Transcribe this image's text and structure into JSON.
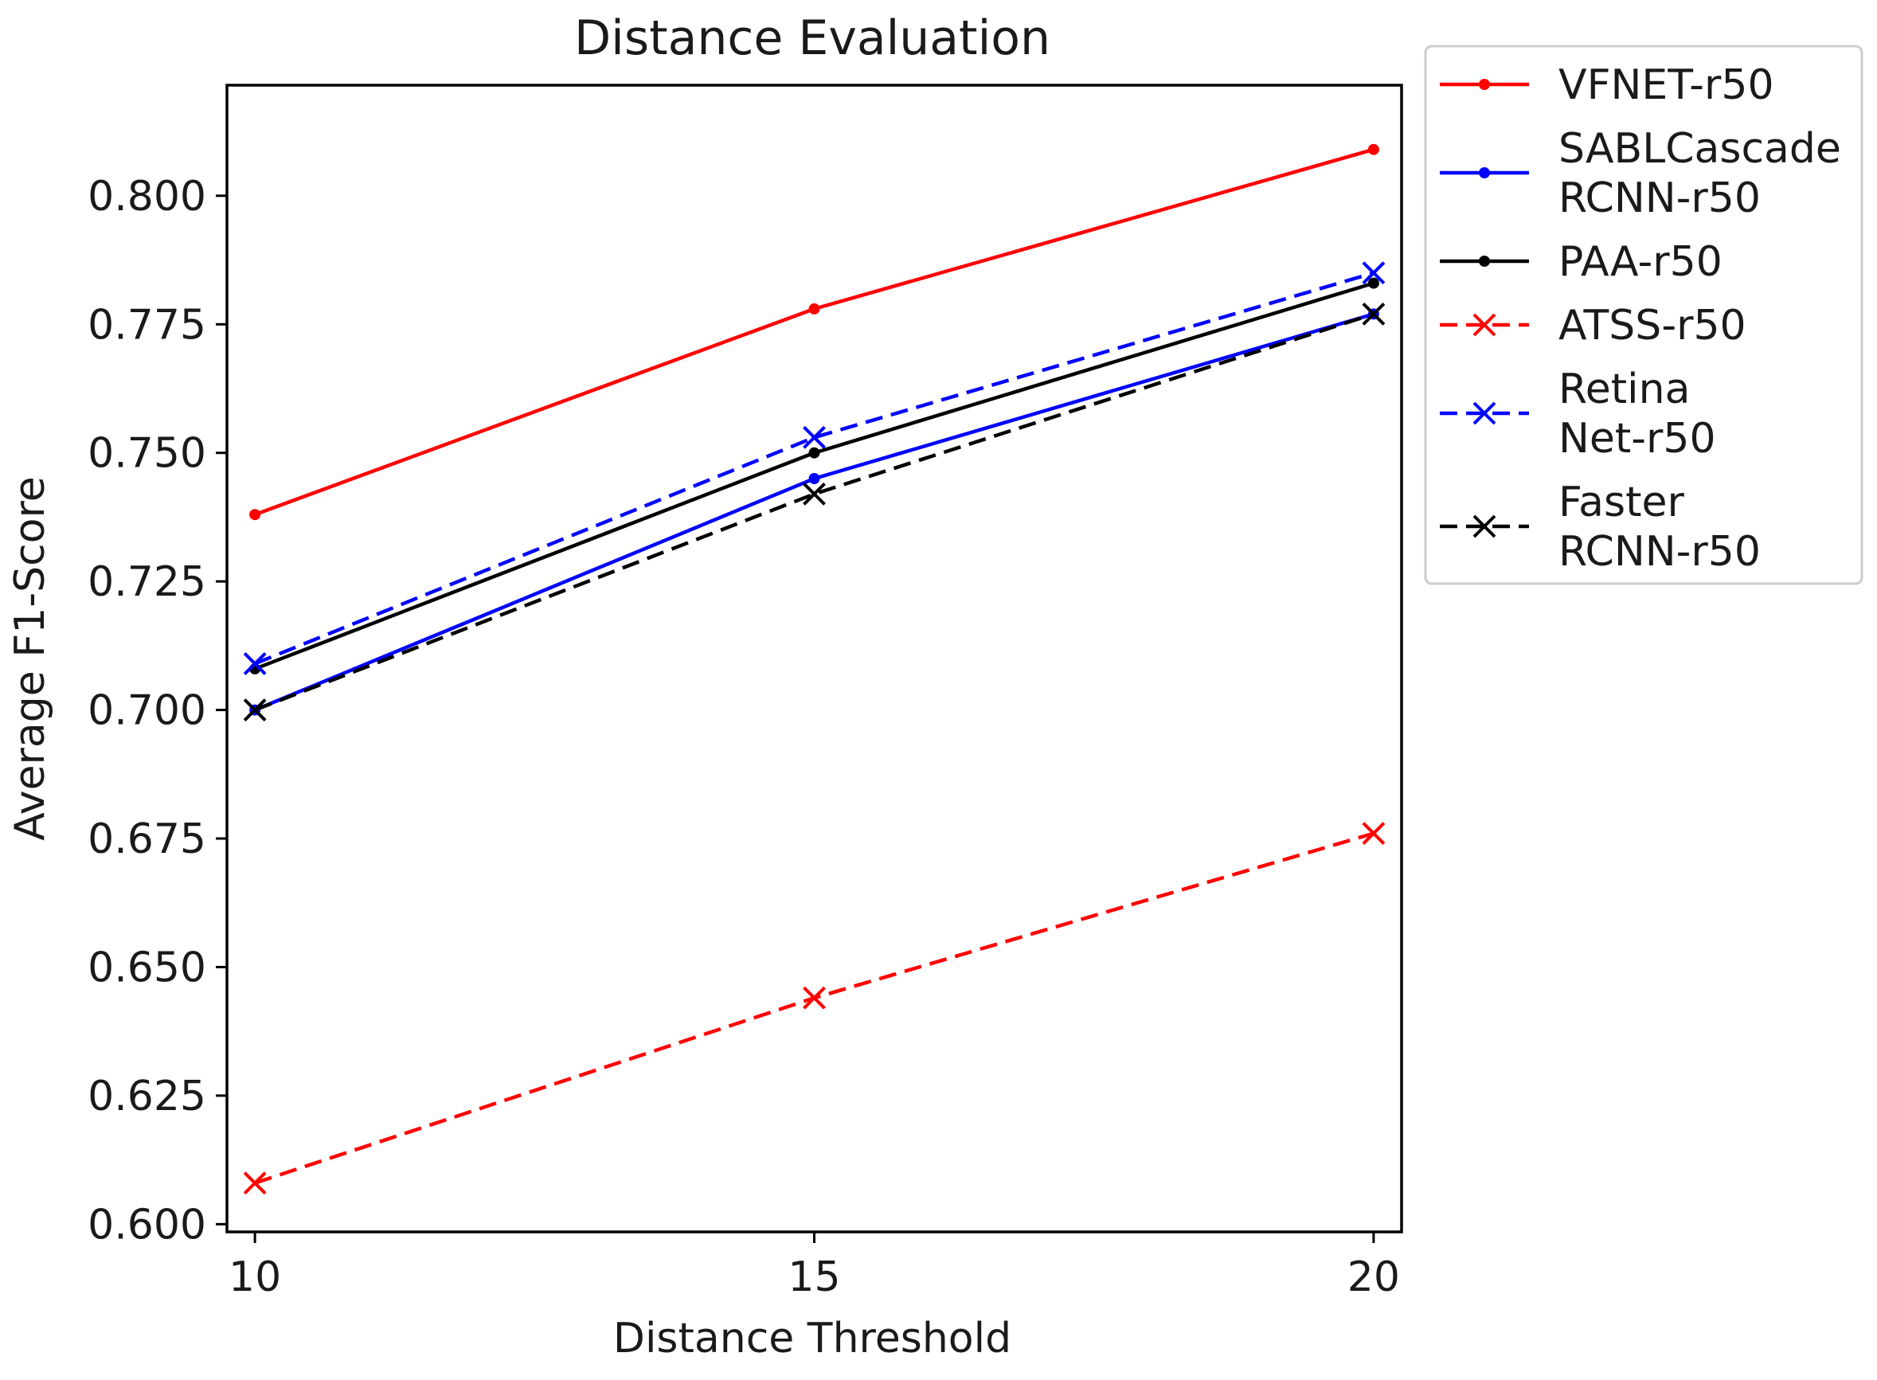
{
  "chart_data": {
    "type": "line",
    "title": "Distance Evaluation",
    "xlabel": "Distance Threshold",
    "ylabel": "Average F1-Score",
    "x": [
      10,
      15,
      20
    ],
    "xlim": [
      9.75,
      20.25
    ],
    "ylim": [
      0.5985,
      0.8215
    ],
    "xticks": [
      10,
      15,
      20
    ],
    "xtick_labels": [
      "10",
      "15",
      "20"
    ],
    "yticks": [
      0.6,
      0.625,
      0.65,
      0.675,
      0.7,
      0.725,
      0.75,
      0.775,
      0.8
    ],
    "ytick_labels": [
      "0.600",
      "0.625",
      "0.650",
      "0.675",
      "0.700",
      "0.725",
      "0.750",
      "0.775",
      "0.800"
    ],
    "grid": false,
    "legend_position": "outside-right-top",
    "series": [
      {
        "name": "VFNET-r50",
        "legend_lines": [
          "VFNET-r50"
        ],
        "values": [
          0.738,
          0.778,
          0.809
        ],
        "color": "#ff0000",
        "style": "solid",
        "marker": "dot"
      },
      {
        "name": "SABLCascade RCNN-r50",
        "legend_lines": [
          "SABLCascade",
          "RCNN-r50"
        ],
        "values": [
          0.7,
          0.745,
          0.777
        ],
        "color": "#0000ff",
        "style": "solid",
        "marker": "dot"
      },
      {
        "name": "PAA-r50",
        "legend_lines": [
          "PAA-r50"
        ],
        "values": [
          0.708,
          0.75,
          0.783
        ],
        "color": "#000000",
        "style": "solid",
        "marker": "dot"
      },
      {
        "name": "ATSS-r50",
        "legend_lines": [
          "ATSS-r50"
        ],
        "values": [
          0.608,
          0.644,
          0.676
        ],
        "color": "#ff0000",
        "style": "dashed",
        "marker": "x"
      },
      {
        "name": "Retina Net-r50",
        "legend_lines": [
          "Retina",
          "Net-r50"
        ],
        "values": [
          0.709,
          0.753,
          0.785
        ],
        "color": "#0000ff",
        "style": "dashed",
        "marker": "x"
      },
      {
        "name": "Faster RCNN-r50",
        "legend_lines": [
          "Faster",
          "RCNN-r50"
        ],
        "values": [
          0.7,
          0.742,
          0.777
        ],
        "color": "#000000",
        "style": "dashed",
        "marker": "x"
      }
    ]
  }
}
